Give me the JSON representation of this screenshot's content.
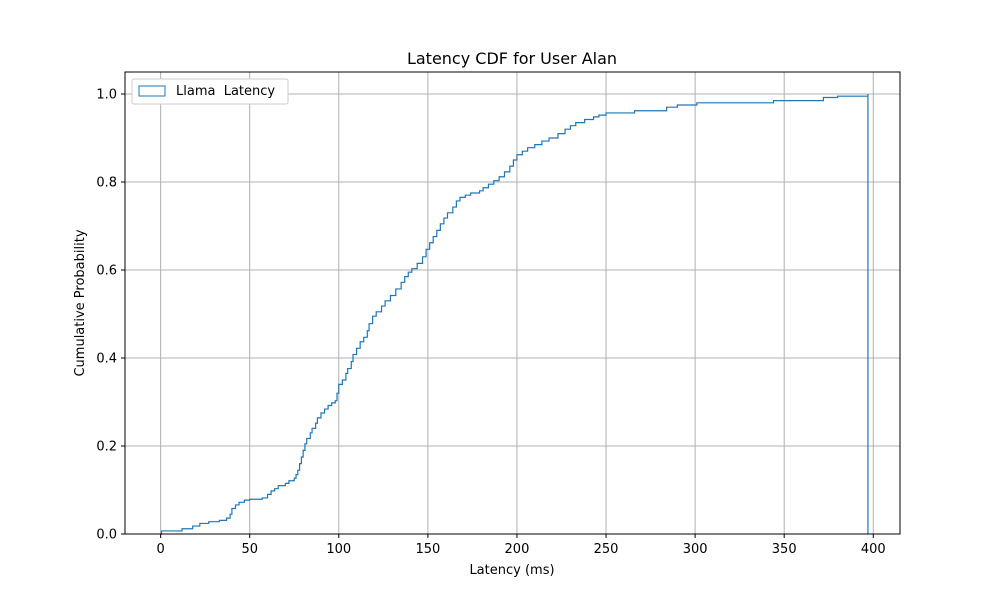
{
  "chart_data": {
    "type": "line",
    "title": "Latency CDF for User Alan",
    "xlabel": "Latency (ms)",
    "ylabel": "Cumulative Probability",
    "xlim": [
      -20,
      415
    ],
    "ylim": [
      0,
      1.05
    ],
    "x_ticks": [
      0,
      50,
      100,
      150,
      200,
      250,
      300,
      350,
      400
    ],
    "y_ticks": [
      0.0,
      0.2,
      0.4,
      0.6,
      0.8,
      1.0
    ],
    "x_tick_labels": [
      "0",
      "50",
      "100",
      "150",
      "200",
      "250",
      "300",
      "350",
      "400"
    ],
    "y_tick_labels": [
      "0.0",
      "0.2",
      "0.4",
      "0.6",
      "0.8",
      "1.0"
    ],
    "grid": true,
    "legend_position": "upper-left",
    "series": [
      {
        "name": "Llama  Latency",
        "color": "#1f77b4",
        "step": true,
        "histtype": "step",
        "points": [
          [
            0,
            0.0
          ],
          [
            0.5,
            0.007
          ],
          [
            12,
            0.012
          ],
          [
            18,
            0.018
          ],
          [
            22,
            0.024
          ],
          [
            27,
            0.028
          ],
          [
            33,
            0.031
          ],
          [
            37,
            0.036
          ],
          [
            39,
            0.045
          ],
          [
            40,
            0.058
          ],
          [
            42,
            0.066
          ],
          [
            44,
            0.072
          ],
          [
            47,
            0.077
          ],
          [
            50,
            0.079
          ],
          [
            57,
            0.082
          ],
          [
            60,
            0.09
          ],
          [
            62,
            0.098
          ],
          [
            64,
            0.103
          ],
          [
            66,
            0.11
          ],
          [
            70,
            0.115
          ],
          [
            72,
            0.121
          ],
          [
            75,
            0.127
          ],
          [
            76,
            0.135
          ],
          [
            77,
            0.145
          ],
          [
            78,
            0.16
          ],
          [
            79,
            0.175
          ],
          [
            80,
            0.19
          ],
          [
            81,
            0.205
          ],
          [
            82,
            0.217
          ],
          [
            84,
            0.23
          ],
          [
            85,
            0.24
          ],
          [
            87,
            0.252
          ],
          [
            88,
            0.264
          ],
          [
            90,
            0.275
          ],
          [
            92,
            0.284
          ],
          [
            94,
            0.292
          ],
          [
            96,
            0.298
          ],
          [
            98,
            0.303
          ],
          [
            99,
            0.32
          ],
          [
            100,
            0.34
          ],
          [
            102,
            0.35
          ],
          [
            104,
            0.365
          ],
          [
            105,
            0.376
          ],
          [
            107,
            0.392
          ],
          [
            108,
            0.408
          ],
          [
            110,
            0.422
          ],
          [
            112,
            0.437
          ],
          [
            114,
            0.447
          ],
          [
            116,
            0.462
          ],
          [
            117,
            0.478
          ],
          [
            119,
            0.495
          ],
          [
            121,
            0.505
          ],
          [
            124,
            0.518
          ],
          [
            126,
            0.53
          ],
          [
            129,
            0.542
          ],
          [
            132,
            0.557
          ],
          [
            135,
            0.572
          ],
          [
            137,
            0.585
          ],
          [
            139,
            0.595
          ],
          [
            141,
            0.603
          ],
          [
            144,
            0.615
          ],
          [
            147,
            0.63
          ],
          [
            149,
            0.647
          ],
          [
            151,
            0.662
          ],
          [
            153,
            0.676
          ],
          [
            155,
            0.69
          ],
          [
            157,
            0.705
          ],
          [
            159,
            0.718
          ],
          [
            161,
            0.73
          ],
          [
            164,
            0.743
          ],
          [
            166,
            0.757
          ],
          [
            168,
            0.765
          ],
          [
            171,
            0.77
          ],
          [
            174,
            0.775
          ],
          [
            179,
            0.78
          ],
          [
            181,
            0.787
          ],
          [
            184,
            0.795
          ],
          [
            187,
            0.803
          ],
          [
            190,
            0.812
          ],
          [
            193,
            0.823
          ],
          [
            196,
            0.836
          ],
          [
            198,
            0.85
          ],
          [
            200,
            0.862
          ],
          [
            203,
            0.87
          ],
          [
            206,
            0.878
          ],
          [
            210,
            0.885
          ],
          [
            214,
            0.893
          ],
          [
            218,
            0.9
          ],
          [
            223,
            0.91
          ],
          [
            227,
            0.92
          ],
          [
            230,
            0.928
          ],
          [
            233,
            0.935
          ],
          [
            238,
            0.942
          ],
          [
            243,
            0.948
          ],
          [
            246,
            0.952
          ],
          [
            250,
            0.957
          ],
          [
            266,
            0.962
          ],
          [
            284,
            0.97
          ],
          [
            290,
            0.975
          ],
          [
            301,
            0.98
          ],
          [
            344,
            0.985
          ],
          [
            372,
            0.992
          ],
          [
            380,
            0.995
          ],
          [
            397,
            1.0
          ]
        ]
      }
    ]
  }
}
